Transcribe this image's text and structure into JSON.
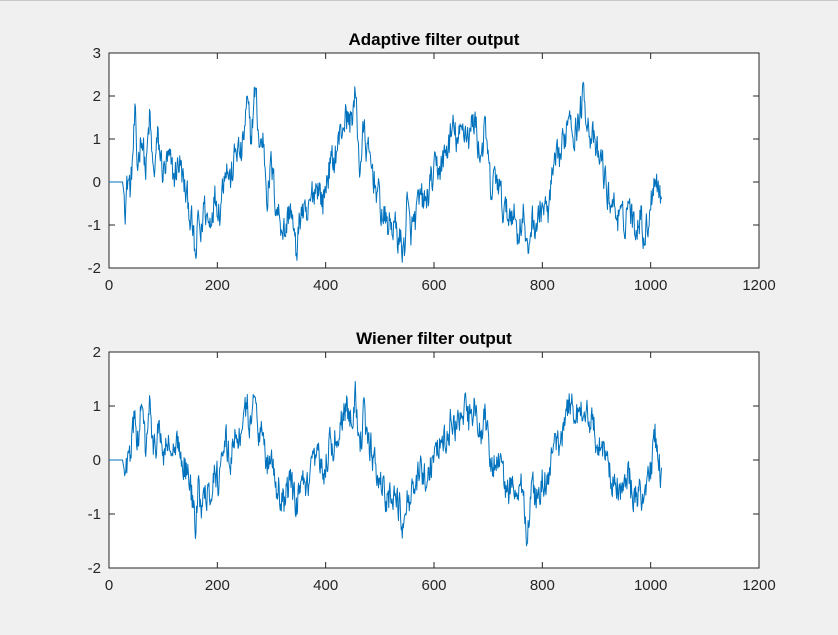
{
  "window": {
    "background": "#f0f0f0"
  },
  "chart_data": [
    {
      "type": "line",
      "title": "Adaptive filter output",
      "xlabel": "",
      "ylabel": "",
      "xlim": [
        0,
        1200
      ],
      "ylim": [
        -2,
        3
      ],
      "xticks": [
        0,
        200,
        400,
        600,
        800,
        1000,
        1200
      ],
      "yticks": [
        -2,
        -1,
        0,
        1,
        2,
        3
      ],
      "grid": false,
      "legend": "none",
      "series": [
        {
          "color": "#0072bd",
          "n_points": 1024,
          "x": [
            0,
            25,
            30,
            35,
            40,
            48,
            52,
            60,
            68,
            75,
            82,
            90,
            100,
            110,
            120,
            130,
            140,
            148,
            155,
            160,
            165,
            170,
            175,
            185,
            195,
            205,
            215,
            225,
            235,
            245,
            255,
            262,
            270,
            278,
            285,
            292,
            300,
            308,
            315,
            325,
            335,
            345,
            355,
            365,
            375,
            385,
            395,
            405,
            415,
            425,
            435,
            445,
            455,
            463,
            470,
            478,
            486,
            495,
            505,
            515,
            525,
            535,
            545,
            550,
            556,
            565,
            575,
            585,
            595,
            605,
            615,
            625,
            635,
            645,
            655,
            665,
            675,
            685,
            695,
            705,
            715,
            725,
            735,
            745,
            755,
            765,
            772,
            780,
            790,
            800,
            810,
            820,
            830,
            840,
            850,
            860,
            870,
            877,
            885,
            893,
            900,
            910,
            920,
            930,
            940,
            950,
            960,
            970,
            980,
            990,
            1000,
            1008,
            1015,
            1020
          ],
          "y": [
            0,
            0,
            -0.5,
            0.1,
            -0.2,
            1.5,
            0.3,
            1.2,
            0.2,
            1.5,
            0.1,
            1.0,
            0.2,
            0.5,
            0.1,
            0.5,
            -0.2,
            -0.6,
            -1.2,
            -1.9,
            -0.8,
            -1.3,
            -0.5,
            -1.0,
            -0.3,
            -0.6,
            0.5,
            0.0,
            0.8,
            0.6,
            1.8,
            1.0,
            2.2,
            0.8,
            1.0,
            -0.3,
            0.4,
            -0.5,
            -0.8,
            -1.2,
            -0.5,
            -1.7,
            -0.6,
            -1.0,
            -0.3,
            0.0,
            -0.5,
            0.3,
            0.5,
            1.0,
            1.5,
            1.4,
            2.0,
            0.3,
            1.2,
            0.6,
            0.3,
            -0.2,
            -0.8,
            -1.0,
            -1.0,
            -1.3,
            -1.6,
            -0.5,
            -1.2,
            -0.9,
            -0.4,
            -0.5,
            0.0,
            0.3,
            0.4,
            0.8,
            1.2,
            0.9,
            1.3,
            1.1,
            1.5,
            0.6,
            1.2,
            -0.3,
            0.2,
            -0.5,
            -0.8,
            -0.6,
            -1.2,
            -0.7,
            -1.8,
            -0.9,
            -1.0,
            -0.5,
            -0.8,
            0.2,
            0.5,
            0.9,
            1.8,
            1.1,
            1.6,
            2.1,
            1.3,
            1.0,
            0.6,
            0.5,
            -0.3,
            -0.5,
            -0.8,
            -1.0,
            -0.4,
            -1.1,
            -0.7,
            -1.3,
            -0.5,
            0.3,
            -0.2,
            -0.3
          ]
        }
      ]
    },
    {
      "type": "line",
      "title": "Wiener filter output",
      "xlabel": "",
      "ylabel": "",
      "xlim": [
        0,
        1200
      ],
      "ylim": [
        -2,
        2
      ],
      "xticks": [
        0,
        200,
        400,
        600,
        800,
        1000,
        1200
      ],
      "yticks": [
        -2,
        -1,
        0,
        1,
        2
      ],
      "grid": false,
      "legend": "none",
      "series": [
        {
          "color": "#0072bd",
          "n_points": 1024,
          "x": [
            0,
            25,
            30,
            35,
            40,
            48,
            52,
            60,
            68,
            75,
            82,
            90,
            100,
            110,
            120,
            130,
            140,
            148,
            155,
            160,
            165,
            170,
            175,
            185,
            195,
            205,
            215,
            225,
            235,
            245,
            255,
            262,
            270,
            278,
            285,
            292,
            300,
            308,
            315,
            325,
            335,
            345,
            355,
            365,
            375,
            385,
            395,
            405,
            415,
            425,
            435,
            445,
            455,
            463,
            470,
            478,
            486,
            495,
            505,
            515,
            525,
            535,
            545,
            550,
            556,
            565,
            575,
            585,
            595,
            605,
            615,
            625,
            635,
            645,
            655,
            665,
            675,
            685,
            695,
            705,
            715,
            725,
            735,
            745,
            755,
            765,
            772,
            780,
            790,
            800,
            810,
            820,
            830,
            840,
            850,
            860,
            870,
            877,
            885,
            893,
            900,
            910,
            920,
            930,
            940,
            950,
            960,
            970,
            980,
            990,
            1000,
            1008,
            1015,
            1020
          ],
          "y": [
            0,
            0,
            -0.3,
            0.1,
            -0.1,
            1.1,
            0.2,
            1.0,
            0.1,
            1.1,
            0.0,
            0.6,
            0.1,
            0.3,
            0.0,
            0.3,
            -0.1,
            -0.4,
            -0.8,
            -1.3,
            -0.5,
            -0.9,
            -0.3,
            -0.7,
            -0.2,
            -0.4,
            0.3,
            0.0,
            0.6,
            0.4,
            1.0,
            0.6,
            1.3,
            0.5,
            0.6,
            -0.2,
            0.2,
            -0.4,
            -0.6,
            -0.8,
            -0.3,
            -1.0,
            -0.4,
            -0.7,
            -0.2,
            0.0,
            -0.3,
            0.2,
            0.3,
            0.6,
            1.0,
            0.9,
            1.2,
            0.2,
            0.8,
            0.3,
            0.1,
            -0.2,
            -0.5,
            -0.7,
            -0.6,
            -0.9,
            -1.3,
            -0.4,
            -0.8,
            -0.6,
            -0.2,
            -0.3,
            0.0,
            0.2,
            0.3,
            0.5,
            0.8,
            0.6,
            0.9,
            0.7,
            1.0,
            0.4,
            0.8,
            -0.2,
            0.1,
            -0.3,
            -0.6,
            -0.4,
            -0.8,
            -0.5,
            -1.4,
            -0.6,
            -0.7,
            -0.3,
            -0.5,
            0.1,
            0.3,
            0.6,
            1.2,
            0.7,
            1.0,
            1.1,
            0.8,
            0.6,
            0.4,
            0.3,
            -0.2,
            -0.3,
            -0.5,
            -0.7,
            -0.3,
            -0.8,
            -0.5,
            -0.8,
            -0.3,
            0.5,
            -0.1,
            -0.2
          ]
        }
      ]
    }
  ]
}
